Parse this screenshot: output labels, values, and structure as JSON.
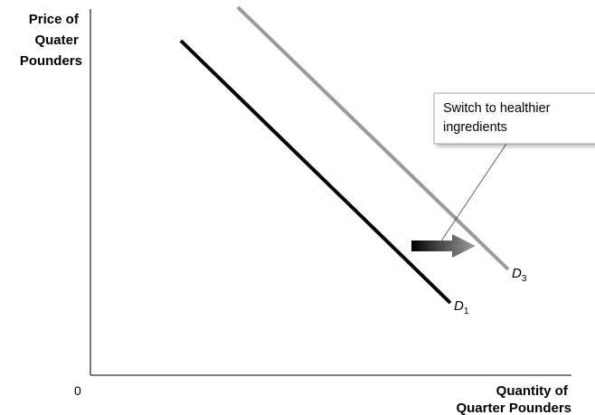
{
  "y_axis_label_lines": [
    "Price of",
    "Quater",
    "Pounders"
  ],
  "x_axis_label_lines": [
    "Quantity of",
    "Quarter Pounders"
  ],
  "origin_label": "0",
  "curves": [
    {
      "letter": "D",
      "sub": "1",
      "color": "#000000"
    },
    {
      "letter": "D",
      "sub": "3",
      "color": "#9a9a9a"
    }
  ],
  "callout_lines": [
    "Switch to healthier",
    "ingredients"
  ],
  "colors": {
    "d1": "#000000",
    "d3": "#9a9a9a",
    "axis": "#333333"
  }
}
